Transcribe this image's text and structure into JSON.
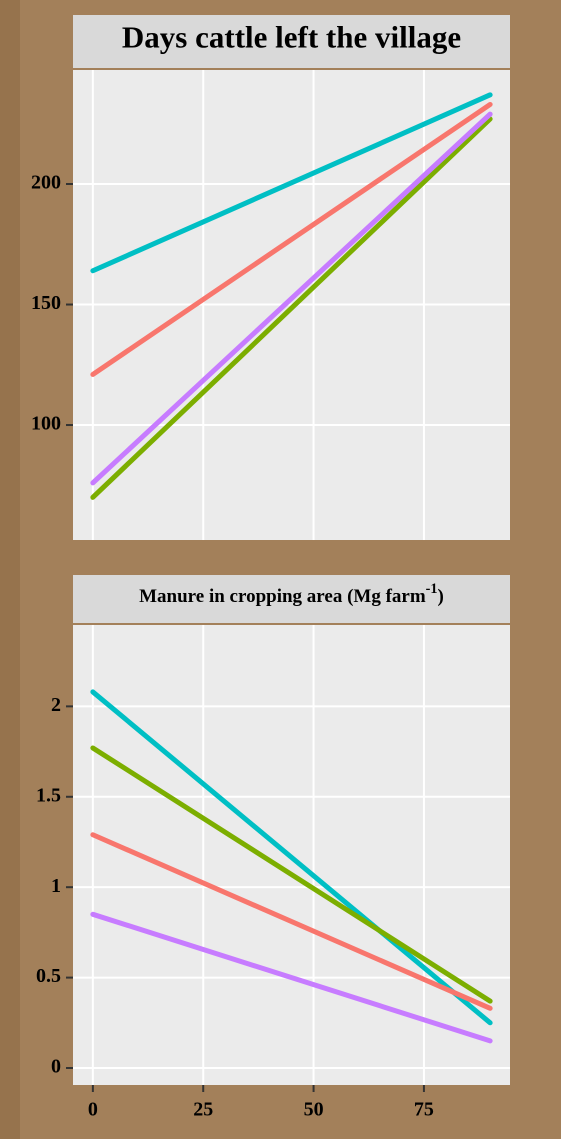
{
  "chart_data": [
    {
      "type": "line",
      "title": "Days cattle left the village",
      "x": [
        0,
        90
      ],
      "series": [
        {
          "color": "#00BFC4",
          "values": [
            164,
            237
          ]
        },
        {
          "color": "#F8766D",
          "values": [
            121,
            233
          ]
        },
        {
          "color": "#7CAE00",
          "values": [
            70,
            227
          ]
        },
        {
          "color": "#C77CFF",
          "values": [
            76,
            229
          ]
        }
      ],
      "xlim": [
        -4.5,
        94.5
      ],
      "xticks": [
        0,
        25,
        50,
        75
      ],
      "ylim": [
        52.3,
        247.3
      ],
      "yticks": [
        100,
        150,
        200
      ],
      "grid": true
    },
    {
      "type": "line",
      "title": "Manure in cropping area (Mg farm",
      "title_superscript": "-1",
      "title_end": ")",
      "x": [
        0,
        90
      ],
      "series": [
        {
          "color": "#00BFC4",
          "values": [
            2.08,
            0.25
          ]
        },
        {
          "color": "#7CAE00",
          "values": [
            1.77,
            0.37
          ]
        },
        {
          "color": "#F8766D",
          "values": [
            1.29,
            0.33
          ]
        },
        {
          "color": "#C77CFF",
          "values": [
            0.85,
            0.15
          ]
        }
      ],
      "xlim": [
        -4.5,
        94.5
      ],
      "xticks": [
        0,
        25,
        50,
        75
      ],
      "ylim": [
        -0.094,
        2.45
      ],
      "yticks": [
        0,
        0.5,
        1,
        1.5,
        2
      ],
      "grid": true
    }
  ]
}
